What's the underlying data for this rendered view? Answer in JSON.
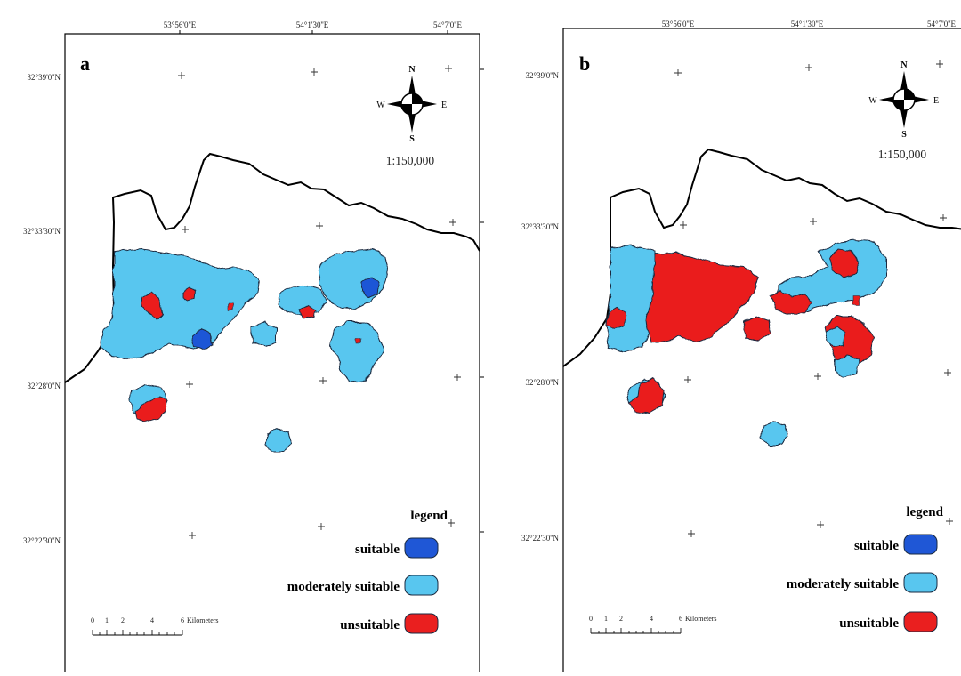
{
  "colors": {
    "suitable": "#1f57d6",
    "moderately_suitable": "#58c6ef",
    "unsuitable": "#ea1f1f",
    "outline": "#1a2a40"
  },
  "panels": [
    {
      "id": "a",
      "letter": "a",
      "lon_labels": [
        "53°56'0''E",
        "54°1'30''E",
        "54°7'0''E"
      ],
      "lat_labels": [
        "32°39'0''N",
        "32°33'30''N",
        "32°28'0''N",
        "32°22'30''N"
      ],
      "scale": "1:150,000",
      "compass": {
        "n": "N",
        "s": "S",
        "e": "E",
        "w": "W"
      },
      "legend": {
        "title": "legend",
        "items": [
          {
            "label": "suitable",
            "class": "suitable"
          },
          {
            "label": "moderately suitable",
            "class": "moderately_suitable"
          },
          {
            "label": "unsuitable",
            "class": "unsuitable"
          }
        ]
      },
      "scalebar": {
        "ticks": [
          "0",
          "1",
          "2",
          "4",
          "6"
        ],
        "unit": "Kilometers"
      }
    },
    {
      "id": "b",
      "letter": "b",
      "lon_labels": [
        "53°56'0''E",
        "54°1'30''E",
        "54°7'0''E"
      ],
      "lat_labels": [
        "32°39'0''N",
        "32°33'30''N",
        "32°28'0''N",
        "32°22'30''N"
      ],
      "scale": "1:150,000",
      "compass": {
        "n": "N",
        "s": "S",
        "e": "E",
        "w": "W"
      },
      "legend": {
        "title": "legend",
        "items": [
          {
            "label": "suitable",
            "class": "suitable"
          },
          {
            "label": "moderately suitable",
            "class": "moderately_suitable"
          },
          {
            "label": "unsuitable",
            "class": "unsuitable"
          }
        ]
      },
      "scalebar": {
        "ticks": [
          "0",
          "1",
          "2",
          "4",
          "6"
        ],
        "unit": "Kilometers"
      }
    }
  ]
}
